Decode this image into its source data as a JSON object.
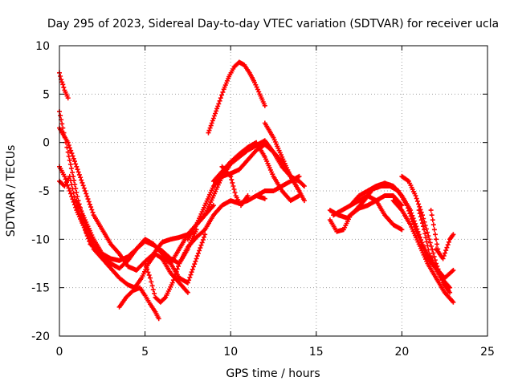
{
  "chart_data": {
    "type": "scatter",
    "title": "Day 295 of 2023, Sidereal Day-to-day VTEC variation (SDTVAR) for receiver ucla",
    "xlabel": "GPS time / hours",
    "ylabel": "SDTVAR / TECUs",
    "xlim": [
      0,
      25
    ],
    "ylim": [
      -20,
      10
    ],
    "xticks": [
      0,
      5,
      10,
      15,
      20,
      25
    ],
    "yticks": [
      -20,
      -15,
      -10,
      -5,
      0,
      5,
      10
    ],
    "grid": true,
    "legend": "none",
    "marker": "+",
    "color": "#ff0000",
    "series": [
      {
        "name": "arc1",
        "x": [
          0.0,
          0.1,
          0.2,
          0.3,
          0.4,
          0.5
        ],
        "y": [
          7.2,
          6.5,
          6.0,
          5.4,
          5.0,
          4.6
        ]
      },
      {
        "name": "arc2",
        "x": [
          0.0,
          0.2,
          0.5,
          0.8,
          1.1,
          1.5,
          2.0,
          2.5,
          3.0,
          3.5,
          4.0,
          4.5,
          5.0,
          5.5,
          6.0,
          6.5,
          7.0,
          7.5,
          8.0
        ],
        "y": [
          3.2,
          1.5,
          -1.0,
          -3.5,
          -6.0,
          -8.5,
          -10.5,
          -11.8,
          -12.5,
          -13.0,
          -12.2,
          -11.0,
          -10.2,
          -10.6,
          -11.2,
          -12.0,
          -12.5,
          -11.0,
          -9.0
        ]
      },
      {
        "name": "arc3",
        "x": [
          0.0,
          0.3,
          0.6,
          1.0,
          1.5,
          2.0,
          2.5,
          3.0,
          3.5,
          4.0,
          4.4,
          4.8,
          5.2,
          5.6,
          6.0,
          6.5,
          7.0,
          7.5
        ],
        "y": [
          -2.5,
          -3.5,
          -5.0,
          -7.0,
          -9.0,
          -11.0,
          -12.0,
          -13.0,
          -14.0,
          -14.7,
          -15.0,
          -14.0,
          -12.5,
          -11.5,
          -12.0,
          -13.5,
          -14.5,
          -15.5
        ]
      },
      {
        "name": "arc4",
        "x": [
          0.0,
          0.3,
          0.6,
          1.0,
          1.4,
          1.8,
          2.2
        ],
        "y": [
          -4.0,
          -4.5,
          -3.5,
          -6.5,
          -8.5,
          -10.5,
          -11.0
        ]
      },
      {
        "name": "arc5",
        "x": [
          0.0,
          0.5,
          1.0,
          1.5,
          2.0,
          2.5,
          3.0,
          3.5,
          4.0,
          4.5,
          5.0,
          5.5,
          6.0,
          6.5,
          7.0,
          7.5,
          8.0,
          8.5,
          9.0
        ],
        "y": [
          1.5,
          0.0,
          -2.5,
          -5.0,
          -7.5,
          -9.0,
          -10.5,
          -11.5,
          -12.8,
          -13.2,
          -12.3,
          -11.5,
          -10.3,
          -10.0,
          -9.8,
          -9.5,
          -8.5,
          -7.5,
          -6.5
        ]
      },
      {
        "name": "arc6",
        "x": [
          1.0,
          1.5,
          2.0,
          2.5,
          3.0,
          3.5,
          4.0,
          4.5,
          5.0,
          5.5,
          6.0,
          6.5,
          7.0,
          7.5,
          8.0,
          8.5
        ],
        "y": [
          -6.0,
          -8.0,
          -10.0,
          -11.5,
          -12.0,
          -12.2,
          -11.8,
          -11.0,
          -10.0,
          -10.5,
          -11.5,
          -12.5,
          -14.0,
          -14.5,
          -12.0,
          -9.5
        ]
      },
      {
        "name": "arc7",
        "x": [
          3.5,
          3.9,
          4.3,
          4.7,
          5.0,
          5.3,
          5.6,
          5.8
        ],
        "y": [
          -17.0,
          -16.0,
          -15.3,
          -15.0,
          -15.8,
          -16.7,
          -17.5,
          -18.2
        ]
      },
      {
        "name": "arc8",
        "x": [
          5.0,
          5.3,
          5.6,
          5.9,
          6.2,
          6.6,
          7.0,
          7.5,
          8.0,
          8.5,
          9.0,
          9.5,
          10.0,
          10.5,
          11.0,
          11.5,
          12.0
        ],
        "y": [
          -12.5,
          -14.0,
          -16.0,
          -16.5,
          -16.0,
          -14.5,
          -12.5,
          -10.8,
          -9.8,
          -9.0,
          -7.5,
          -6.5,
          -6.0,
          -6.3,
          -6.0,
          -5.5,
          -5.8
        ]
      },
      {
        "name": "arc9",
        "x": [
          6.0,
          6.5,
          7.0,
          7.5,
          8.0,
          8.5,
          9.0,
          9.5,
          10.0,
          10.5,
          11.0,
          11.5,
          12.0,
          12.5,
          13.0,
          13.5,
          14.0
        ],
        "y": [
          -11.8,
          -12.5,
          -11.0,
          -9.5,
          -8.5,
          -6.5,
          -4.5,
          -3.5,
          -3.2,
          -2.8,
          -1.8,
          -0.8,
          -0.2,
          -1.0,
          -2.0,
          -3.5,
          -5.0
        ]
      },
      {
        "name": "arc10",
        "x": [
          7.5,
          8.0,
          8.5,
          9.0,
          9.5,
          10.0,
          10.5,
          11.0,
          11.5,
          12.0,
          12.5,
          13.0,
          13.5,
          14.0,
          14.3
        ],
        "y": [
          -10.0,
          -8.5,
          -7.5,
          -5.5,
          -3.5,
          -2.2,
          -1.5,
          -0.8,
          -0.3,
          0.2,
          -1.0,
          -2.5,
          -3.5,
          -4.0,
          -4.5
        ]
      },
      {
        "name": "arc11",
        "x": [
          9.0,
          9.5,
          10.0,
          10.5,
          11.0,
          11.5,
          12.0,
          12.5,
          13.0,
          13.5,
          14.0
        ],
        "y": [
          -4.0,
          -3.0,
          -2.0,
          -1.2,
          -0.5,
          0.0,
          -1.5,
          -3.5,
          -5.0,
          -6.0,
          -5.5
        ]
      },
      {
        "name": "arc12",
        "x": [
          9.5,
          10.0,
          10.3,
          10.6,
          11.0
        ],
        "y": [
          -2.5,
          -3.5,
          -5.5,
          -6.5,
          -5.5
        ]
      },
      {
        "name": "arc13",
        "x": [
          11.5,
          12.0,
          12.5,
          13.0,
          13.5,
          14.0
        ],
        "y": [
          -5.5,
          -5.0,
          -5.0,
          -4.5,
          -4.0,
          -3.5
        ]
      },
      {
        "name": "arc14",
        "x": [
          8.7,
          9.0,
          9.3,
          9.6,
          9.9,
          10.2,
          10.5,
          10.8,
          11.1,
          11.4,
          11.7,
          12.0
        ],
        "y": [
          1.0,
          2.5,
          4.0,
          5.5,
          6.8,
          7.8,
          8.3,
          8.0,
          7.2,
          6.2,
          5.0,
          3.8
        ]
      },
      {
        "name": "arc15",
        "x": [
          12.0,
          12.5,
          13.0,
          13.5,
          14.0,
          14.3
        ],
        "y": [
          2.0,
          0.5,
          -1.5,
          -3.5,
          -5.0,
          -6.0
        ]
      },
      {
        "name": "arc16",
        "x": [
          15.8,
          16.2,
          16.6,
          17.0,
          17.5,
          18.0,
          18.5,
          19.0,
          19.5,
          20.0
        ],
        "y": [
          -8.0,
          -9.2,
          -9.0,
          -7.5,
          -6.8,
          -6.5,
          -6.0,
          -5.5,
          -5.5,
          -6.5
        ]
      },
      {
        "name": "arc17",
        "x": [
          15.8,
          16.3,
          16.8,
          17.3,
          17.8,
          18.3,
          18.8,
          19.3,
          19.8,
          20.3,
          20.8,
          21.3,
          21.8,
          22.3,
          22.8
        ],
        "y": [
          -7.0,
          -7.5,
          -7.8,
          -7.0,
          -6.0,
          -4.8,
          -4.5,
          -4.5,
          -5.0,
          -6.5,
          -9.0,
          -11.0,
          -12.5,
          -14.0,
          -15.0
        ]
      },
      {
        "name": "arc18",
        "x": [
          16.0,
          16.5,
          17.0,
          17.5,
          18.0,
          18.5,
          19.0,
          19.5,
          20.0
        ],
        "y": [
          -7.5,
          -7.0,
          -6.5,
          -6.0,
          -5.5,
          -6.0,
          -7.5,
          -8.5,
          -9.0
        ]
      },
      {
        "name": "arc19",
        "x": [
          17.0,
          17.5,
          18.0,
          18.5,
          19.0,
          19.5,
          20.0,
          20.5,
          21.0,
          21.5,
          22.0,
          22.5,
          23.0
        ],
        "y": [
          -6.5,
          -5.5,
          -5.0,
          -4.5,
          -4.2,
          -4.5,
          -5.5,
          -7.0,
          -9.5,
          -12.0,
          -13.0,
          -14.0,
          -13.2
        ]
      },
      {
        "name": "arc20",
        "x": [
          19.5,
          20.0,
          20.5,
          21.0,
          21.5,
          22.0,
          22.5,
          23.0
        ],
        "y": [
          -6.0,
          -7.0,
          -8.5,
          -10.5,
          -12.5,
          -14.0,
          -15.5,
          -16.5
        ]
      },
      {
        "name": "arc21",
        "x": [
          20.0,
          20.4,
          20.8,
          21.2,
          21.6,
          22.0,
          22.4,
          22.8
        ],
        "y": [
          -3.5,
          -4.0,
          -5.5,
          -7.5,
          -10.0,
          -12.5,
          -14.5,
          -15.5
        ]
      },
      {
        "name": "arc22",
        "x": [
          21.0,
          21.3,
          21.6,
          22.0
        ],
        "y": [
          -7.0,
          -9.0,
          -11.5,
          -13.0
        ]
      },
      {
        "name": "arc23",
        "x": [
          22.0,
          22.4,
          22.8,
          23.0
        ],
        "y": [
          -11.0,
          -12.0,
          -10.0,
          -9.5
        ]
      },
      {
        "name": "arc24",
        "x": [
          21.7,
          21.9,
          22.1
        ],
        "y": [
          -7.0,
          -9.0,
          -11.0
        ]
      }
    ]
  }
}
